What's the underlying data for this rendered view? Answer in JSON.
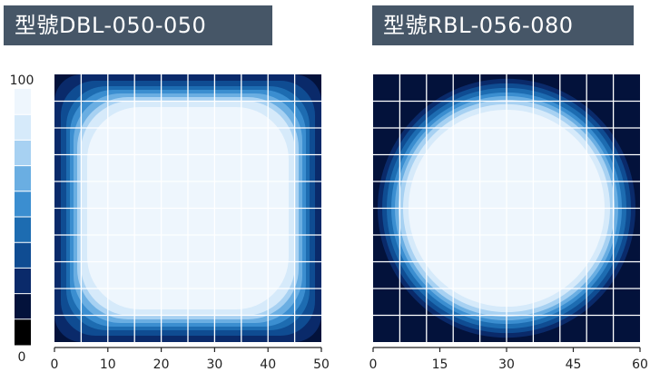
{
  "chart_data": [
    {
      "type": "heatmap",
      "title": "型號DBL-050-050",
      "shape": "rounded-square",
      "xlim": [
        0,
        50
      ],
      "ylim": [
        0,
        50
      ],
      "x_ticks": [
        0,
        10,
        20,
        30,
        40,
        50
      ],
      "grid": true,
      "grid_lines": 10,
      "contour_levels": [
        10,
        20,
        30,
        40,
        50,
        60,
        70,
        80,
        90
      ]
    },
    {
      "type": "heatmap",
      "title": "型號RBL-056-080",
      "shape": "circle",
      "xlim": [
        0,
        60
      ],
      "ylim": [
        0,
        60
      ],
      "x_ticks": [
        0,
        15,
        30,
        45,
        60
      ],
      "grid": true,
      "grid_lines": 10,
      "contour_levels": [
        10,
        20,
        30,
        40,
        50,
        60,
        70,
        80,
        90
      ]
    }
  ],
  "colorbar": {
    "min_label": "0",
    "max_label": "100",
    "colors": [
      "#000000",
      "#03123b",
      "#0a2a6a",
      "#0f4c92",
      "#1d6cb1",
      "#3b8ed0",
      "#6aaee2",
      "#a7d1f2",
      "#d6eafa",
      "#eef6fd"
    ]
  }
}
